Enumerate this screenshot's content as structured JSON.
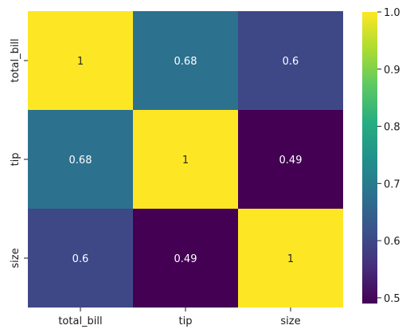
{
  "chart_data": {
    "type": "heatmap",
    "title": "",
    "xlabel": "",
    "ylabel": "",
    "x_categories": [
      "total_bill",
      "tip",
      "size"
    ],
    "y_categories": [
      "total_bill",
      "tip",
      "size"
    ],
    "values": [
      [
        1,
        0.68,
        0.6
      ],
      [
        0.68,
        1,
        0.49
      ],
      [
        0.6,
        0.49,
        1
      ]
    ],
    "annotations": [
      [
        "1",
        "0.68",
        "0.6"
      ],
      [
        "0.68",
        "1",
        "0.49"
      ],
      [
        "0.6",
        "0.49",
        "1"
      ]
    ],
    "colormap": "viridis",
    "color_range": [
      0.49,
      1.0
    ],
    "colorbar_ticks": [
      "0.5",
      "0.6",
      "0.7",
      "0.8",
      "0.9",
      "1.0"
    ],
    "colorbar_tick_values": [
      0.5,
      0.6,
      0.7,
      0.8,
      0.9,
      1.0
    ],
    "annotation_colors": {
      "on_dark": "#ffffff",
      "on_light": "#262626"
    }
  }
}
